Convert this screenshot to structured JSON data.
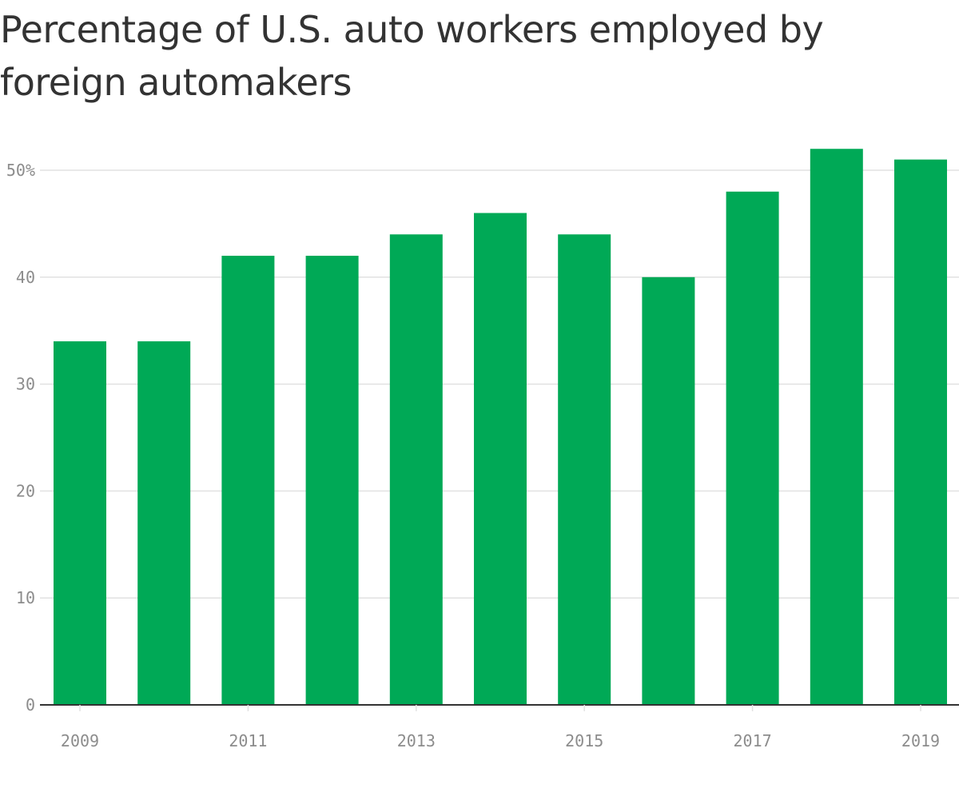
{
  "title": "Percentage of U.S. auto workers employed by foreign automakers",
  "colors": {
    "bar": "#00a956",
    "grid": "#e2e2e2",
    "axis": "#333333",
    "tick_text": "#8c8c8c",
    "title": "#333333"
  },
  "chart_data": {
    "type": "bar",
    "categories": [
      "2009",
      "2010",
      "2011",
      "2012",
      "2013",
      "2014",
      "2015",
      "2016",
      "2017",
      "2018",
      "2019"
    ],
    "values": [
      34,
      34,
      42,
      42,
      44,
      46,
      44,
      40,
      48,
      52,
      51
    ],
    "ylim": [
      0,
      50
    ],
    "y_ticks": [
      0,
      10,
      20,
      30,
      40,
      50
    ],
    "y_tick_labels": [
      "0",
      "10",
      "20",
      "30",
      "40",
      "50%"
    ],
    "x_tick_labels": [
      "2009",
      "2011",
      "2013",
      "2015",
      "2017",
      "2019"
    ],
    "grid": true,
    "legend": "none"
  }
}
